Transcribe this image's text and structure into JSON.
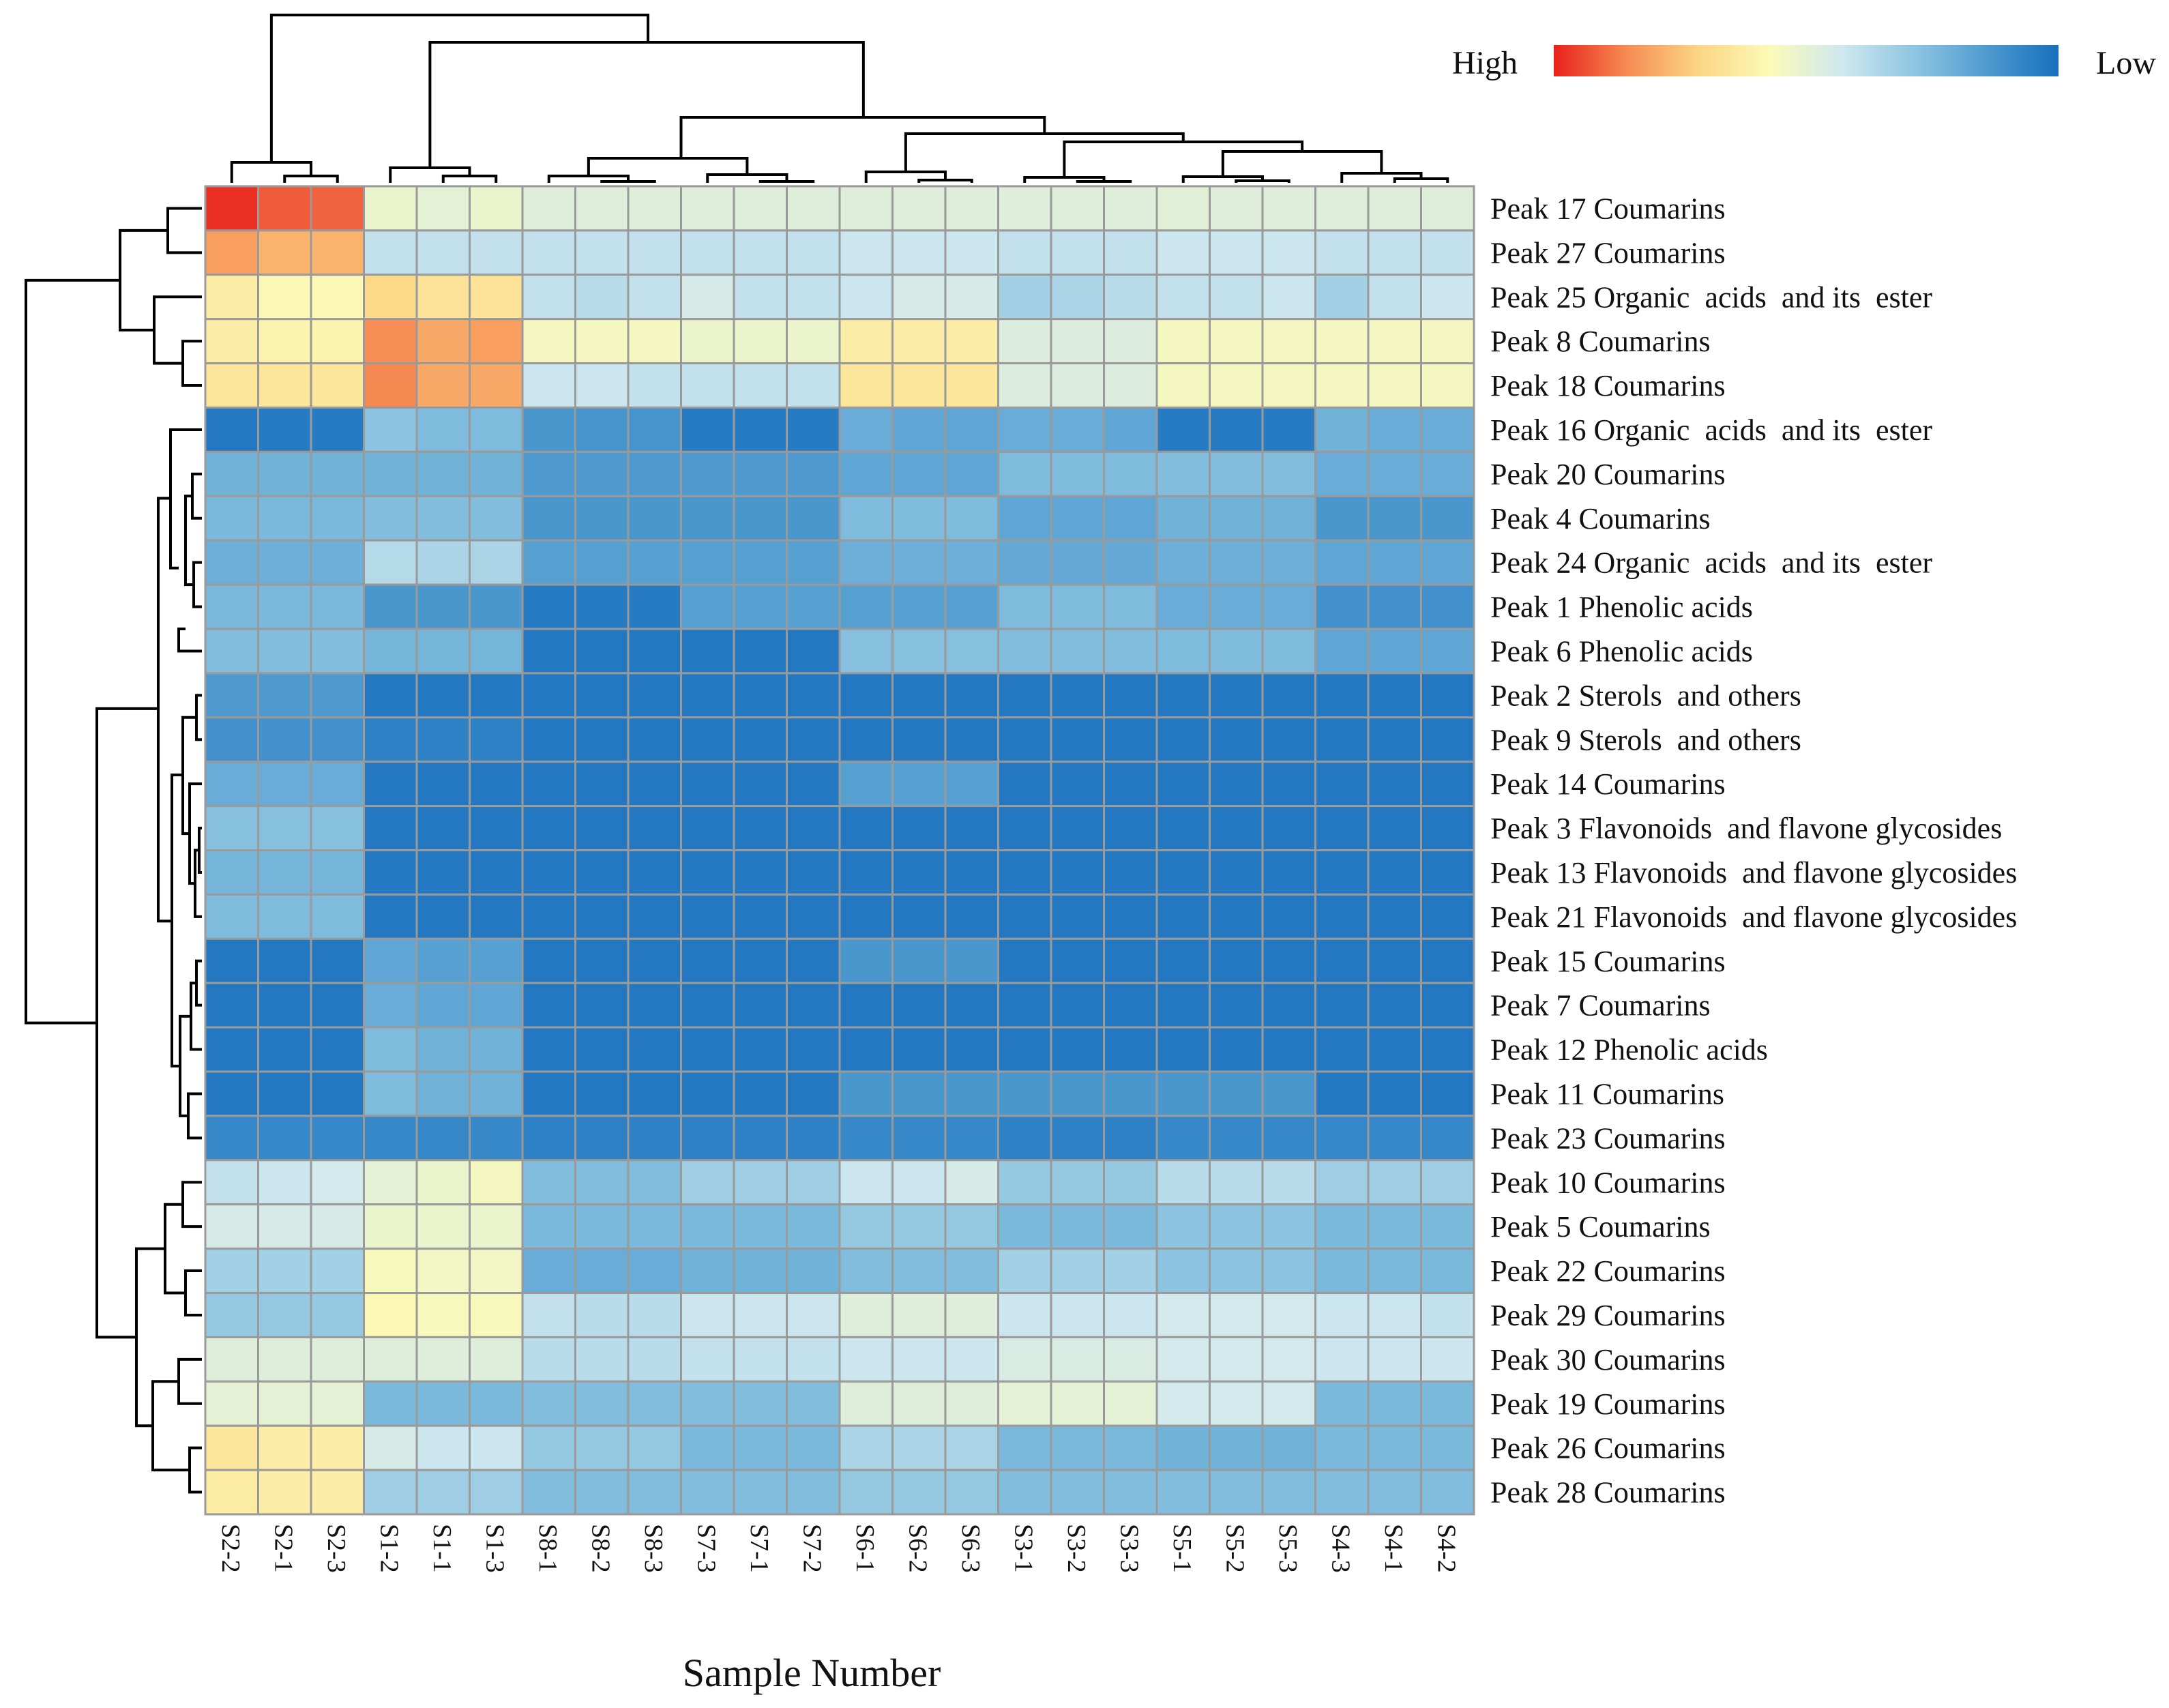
{
  "chart_data": {
    "type": "heatmap",
    "xlabel": "Sample Number",
    "legend": {
      "high_label": "High",
      "low_label": "Low",
      "placement": "top-right"
    },
    "colors": {
      "scale": [
        "#e8211b",
        "#f68a52",
        "#fcd584",
        "#fbfab8",
        "#cfe8ef",
        "#8ec5e1",
        "#4f9bd0",
        "#176fbd"
      ],
      "grid": "#9a9a9a",
      "dendrogram": "#000000"
    },
    "columns": [
      "S2-2",
      "S2-1",
      "S2-3",
      "S1-2",
      "S1-1",
      "S1-3",
      "S8-1",
      "S8-2",
      "S8-3",
      "S7-3",
      "S7-1",
      "S7-2",
      "S6-1",
      "S6-2",
      "S6-3",
      "S3-1",
      "S3-2",
      "S3-3",
      "S5-1",
      "S5-2",
      "S5-3",
      "S4-3",
      "S4-1",
      "S4-2"
    ],
    "rows": [
      "Peak 17 Coumarins",
      "Peak 27 Coumarins",
      "Peak 25 Organic  acids  and its  ester",
      "Peak 8 Coumarins",
      "Peak 18 Coumarins",
      "Peak 16 Organic  acids  and its  ester",
      "Peak 20 Coumarins",
      "Peak 4 Coumarins",
      "Peak 24 Organic  acids  and its  ester",
      "Peak 1 Phenolic acids",
      "Peak 6 Phenolic acids",
      "Peak 2 Sterols  and others",
      "Peak 9 Sterols  and others",
      "Peak 14 Coumarins",
      "Peak 3 Flavonoids  and flavone glycosides",
      "Peak 13 Flavonoids  and flavone glycosides",
      "Peak 21 Flavonoids  and flavone glycosides",
      "Peak 15 Coumarins",
      "Peak 7 Coumarins",
      "Peak 12 Phenolic acids",
      "Peak 11 Coumarins",
      "Peak 23 Coumarins",
      "Peak 10 Coumarins",
      "Peak 5 Coumarins",
      "Peak 22 Coumarins",
      "Peak 29 Coumarins",
      "Peak 30 Coumarins",
      "Peak 19 Coumarins",
      "Peak 26 Coumarins",
      "Peak 28 Coumarins"
    ],
    "values_scale": "relative intensity 0 (Low) to 1 (High)",
    "values": [
      [
        0.98,
        0.92,
        0.91,
        0.52,
        0.5,
        0.52,
        0.48,
        0.48,
        0.48,
        0.48,
        0.48,
        0.48,
        0.48,
        0.48,
        0.48,
        0.48,
        0.48,
        0.48,
        0.49,
        0.48,
        0.48,
        0.48,
        0.48,
        0.48
      ],
      [
        0.82,
        0.78,
        0.78,
        0.4,
        0.4,
        0.4,
        0.4,
        0.4,
        0.4,
        0.4,
        0.4,
        0.4,
        0.42,
        0.42,
        0.42,
        0.4,
        0.4,
        0.4,
        0.42,
        0.42,
        0.42,
        0.4,
        0.4,
        0.4
      ],
      [
        0.62,
        0.58,
        0.58,
        0.7,
        0.66,
        0.66,
        0.4,
        0.38,
        0.4,
        0.45,
        0.4,
        0.4,
        0.42,
        0.45,
        0.45,
        0.33,
        0.35,
        0.38,
        0.4,
        0.4,
        0.42,
        0.33,
        0.4,
        0.42
      ],
      [
        0.62,
        0.6,
        0.6,
        0.85,
        0.8,
        0.82,
        0.55,
        0.55,
        0.55,
        0.52,
        0.52,
        0.52,
        0.62,
        0.62,
        0.62,
        0.47,
        0.47,
        0.47,
        0.55,
        0.55,
        0.55,
        0.55,
        0.55,
        0.55
      ],
      [
        0.65,
        0.65,
        0.65,
        0.86,
        0.8,
        0.8,
        0.42,
        0.42,
        0.4,
        0.4,
        0.4,
        0.4,
        0.65,
        0.65,
        0.65,
        0.47,
        0.47,
        0.47,
        0.55,
        0.55,
        0.55,
        0.55,
        0.55,
        0.55
      ],
      [
        0.03,
        0.04,
        0.04,
        0.28,
        0.25,
        0.25,
        0.13,
        0.12,
        0.12,
        0.04,
        0.04,
        0.04,
        0.2,
        0.18,
        0.18,
        0.2,
        0.2,
        0.18,
        0.04,
        0.04,
        0.04,
        0.22,
        0.2,
        0.2
      ],
      [
        0.22,
        0.22,
        0.22,
        0.22,
        0.22,
        0.22,
        0.14,
        0.14,
        0.14,
        0.14,
        0.14,
        0.14,
        0.18,
        0.18,
        0.18,
        0.25,
        0.25,
        0.25,
        0.26,
        0.26,
        0.26,
        0.2,
        0.2,
        0.2
      ],
      [
        0.24,
        0.24,
        0.24,
        0.26,
        0.26,
        0.26,
        0.13,
        0.13,
        0.13,
        0.13,
        0.13,
        0.13,
        0.25,
        0.25,
        0.25,
        0.18,
        0.18,
        0.18,
        0.22,
        0.22,
        0.22,
        0.13,
        0.13,
        0.13
      ],
      [
        0.21,
        0.21,
        0.21,
        0.37,
        0.35,
        0.35,
        0.16,
        0.16,
        0.16,
        0.16,
        0.16,
        0.16,
        0.21,
        0.21,
        0.21,
        0.19,
        0.19,
        0.19,
        0.21,
        0.21,
        0.21,
        0.18,
        0.18,
        0.18
      ],
      [
        0.24,
        0.24,
        0.24,
        0.13,
        0.13,
        0.13,
        0.04,
        0.04,
        0.04,
        0.16,
        0.16,
        0.16,
        0.16,
        0.16,
        0.16,
        0.25,
        0.25,
        0.25,
        0.2,
        0.2,
        0.2,
        0.11,
        0.11,
        0.11
      ],
      [
        0.26,
        0.26,
        0.26,
        0.23,
        0.23,
        0.23,
        0.03,
        0.03,
        0.03,
        0.03,
        0.03,
        0.03,
        0.27,
        0.27,
        0.27,
        0.26,
        0.26,
        0.26,
        0.25,
        0.25,
        0.25,
        0.18,
        0.18,
        0.18
      ],
      [
        0.14,
        0.14,
        0.14,
        0.03,
        0.03,
        0.03,
        0.03,
        0.03,
        0.03,
        0.03,
        0.03,
        0.03,
        0.03,
        0.03,
        0.03,
        0.03,
        0.03,
        0.03,
        0.03,
        0.03,
        0.03,
        0.03,
        0.03,
        0.03
      ],
      [
        0.11,
        0.11,
        0.11,
        0.06,
        0.06,
        0.06,
        0.03,
        0.03,
        0.03,
        0.03,
        0.03,
        0.03,
        0.03,
        0.03,
        0.03,
        0.03,
        0.03,
        0.03,
        0.03,
        0.03,
        0.03,
        0.03,
        0.03,
        0.03
      ],
      [
        0.2,
        0.2,
        0.2,
        0.03,
        0.03,
        0.03,
        0.03,
        0.03,
        0.03,
        0.03,
        0.03,
        0.03,
        0.16,
        0.16,
        0.16,
        0.03,
        0.03,
        0.03,
        0.03,
        0.03,
        0.03,
        0.03,
        0.03,
        0.03
      ],
      [
        0.27,
        0.27,
        0.27,
        0.03,
        0.03,
        0.03,
        0.03,
        0.03,
        0.03,
        0.03,
        0.03,
        0.03,
        0.03,
        0.03,
        0.03,
        0.03,
        0.03,
        0.03,
        0.03,
        0.03,
        0.03,
        0.03,
        0.03,
        0.03
      ],
      [
        0.23,
        0.23,
        0.23,
        0.03,
        0.03,
        0.03,
        0.03,
        0.03,
        0.03,
        0.03,
        0.03,
        0.03,
        0.03,
        0.03,
        0.03,
        0.03,
        0.03,
        0.03,
        0.03,
        0.03,
        0.03,
        0.03,
        0.03,
        0.03
      ],
      [
        0.25,
        0.25,
        0.25,
        0.03,
        0.03,
        0.03,
        0.03,
        0.03,
        0.03,
        0.03,
        0.03,
        0.03,
        0.03,
        0.03,
        0.03,
        0.03,
        0.03,
        0.03,
        0.03,
        0.03,
        0.03,
        0.03,
        0.03,
        0.03
      ],
      [
        0.03,
        0.03,
        0.03,
        0.18,
        0.16,
        0.16,
        0.03,
        0.03,
        0.03,
        0.03,
        0.03,
        0.03,
        0.13,
        0.13,
        0.13,
        0.03,
        0.03,
        0.03,
        0.03,
        0.03,
        0.03,
        0.03,
        0.03,
        0.03
      ],
      [
        0.03,
        0.03,
        0.03,
        0.2,
        0.18,
        0.18,
        0.03,
        0.03,
        0.03,
        0.03,
        0.03,
        0.03,
        0.03,
        0.03,
        0.03,
        0.03,
        0.03,
        0.03,
        0.03,
        0.03,
        0.03,
        0.03,
        0.03,
        0.03
      ],
      [
        0.03,
        0.03,
        0.03,
        0.25,
        0.22,
        0.22,
        0.03,
        0.03,
        0.03,
        0.03,
        0.03,
        0.03,
        0.03,
        0.03,
        0.03,
        0.03,
        0.03,
        0.03,
        0.03,
        0.03,
        0.03,
        0.03,
        0.03,
        0.03
      ],
      [
        0.03,
        0.03,
        0.03,
        0.25,
        0.22,
        0.22,
        0.03,
        0.03,
        0.03,
        0.03,
        0.03,
        0.03,
        0.13,
        0.13,
        0.13,
        0.13,
        0.13,
        0.13,
        0.13,
        0.13,
        0.13,
        0.03,
        0.03,
        0.03
      ],
      [
        0.08,
        0.08,
        0.08,
        0.08,
        0.08,
        0.08,
        0.06,
        0.06,
        0.06,
        0.06,
        0.06,
        0.06,
        0.08,
        0.08,
        0.08,
        0.06,
        0.06,
        0.06,
        0.08,
        0.08,
        0.08,
        0.08,
        0.08,
        0.08
      ],
      [
        0.4,
        0.42,
        0.44,
        0.5,
        0.52,
        0.55,
        0.26,
        0.26,
        0.26,
        0.32,
        0.32,
        0.32,
        0.42,
        0.42,
        0.45,
        0.3,
        0.3,
        0.3,
        0.38,
        0.38,
        0.38,
        0.32,
        0.32,
        0.32
      ],
      [
        0.45,
        0.45,
        0.45,
        0.52,
        0.52,
        0.52,
        0.24,
        0.24,
        0.24,
        0.24,
        0.24,
        0.24,
        0.3,
        0.3,
        0.3,
        0.24,
        0.24,
        0.24,
        0.28,
        0.28,
        0.28,
        0.24,
        0.24,
        0.24
      ],
      [
        0.33,
        0.33,
        0.33,
        0.56,
        0.54,
        0.54,
        0.2,
        0.2,
        0.2,
        0.22,
        0.22,
        0.22,
        0.26,
        0.26,
        0.26,
        0.33,
        0.33,
        0.33,
        0.28,
        0.28,
        0.28,
        0.24,
        0.24,
        0.24
      ],
      [
        0.3,
        0.3,
        0.3,
        0.58,
        0.56,
        0.56,
        0.4,
        0.38,
        0.38,
        0.42,
        0.42,
        0.42,
        0.48,
        0.48,
        0.48,
        0.42,
        0.42,
        0.42,
        0.44,
        0.44,
        0.44,
        0.42,
        0.42,
        0.4
      ],
      [
        0.48,
        0.48,
        0.48,
        0.48,
        0.48,
        0.48,
        0.38,
        0.38,
        0.38,
        0.4,
        0.4,
        0.4,
        0.42,
        0.42,
        0.42,
        0.46,
        0.46,
        0.46,
        0.44,
        0.44,
        0.44,
        0.42,
        0.42,
        0.42
      ],
      [
        0.5,
        0.5,
        0.5,
        0.24,
        0.24,
        0.24,
        0.26,
        0.26,
        0.26,
        0.26,
        0.26,
        0.26,
        0.48,
        0.48,
        0.48,
        0.5,
        0.5,
        0.5,
        0.44,
        0.44,
        0.44,
        0.24,
        0.24,
        0.24
      ],
      [
        0.65,
        0.62,
        0.62,
        0.45,
        0.42,
        0.42,
        0.3,
        0.3,
        0.3,
        0.24,
        0.24,
        0.24,
        0.35,
        0.35,
        0.35,
        0.24,
        0.24,
        0.24,
        0.22,
        0.22,
        0.22,
        0.24,
        0.24,
        0.24
      ],
      [
        0.63,
        0.62,
        0.62,
        0.32,
        0.32,
        0.32,
        0.26,
        0.26,
        0.26,
        0.26,
        0.26,
        0.26,
        0.3,
        0.3,
        0.3,
        0.26,
        0.26,
        0.26,
        0.26,
        0.26,
        0.26,
        0.26,
        0.26,
        0.26
      ]
    ]
  }
}
